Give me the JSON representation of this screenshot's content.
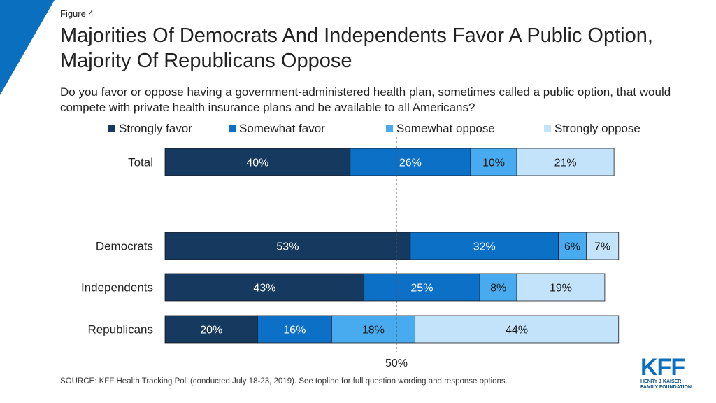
{
  "figure_label": "Figure 4",
  "title": "Majorities Of Democrats And Independents Favor A Public Option, Majority Of Republicans Oppose",
  "subtitle": "Do you favor or oppose having a government-administered health plan, sometimes called a public option, that would compete with private health insurance plans and be available to all Americans?",
  "source": "SOURCE: KFF Health Tracking Poll (conducted July 18-23, 2019). See topline for full question wording and response options.",
  "logo": {
    "main": "KFF",
    "line1": "HENRY J KAISER",
    "line2": "FAMILY FOUNDATION"
  },
  "colors": {
    "accent": "#0b6fbf",
    "corner": "#0b6fbf"
  },
  "chart_data": {
    "type": "bar",
    "orientation": "horizontal",
    "stacked": true,
    "categories": [
      "Total",
      "Democrats",
      "Independents",
      "Republicans"
    ],
    "series": [
      {
        "name": "Strongly favor",
        "color": "#163a5f",
        "values": [
          40,
          53,
          43,
          20
        ],
        "labels": [
          "40%",
          "53%",
          "43%",
          "20%"
        ]
      },
      {
        "name": "Somewhat favor",
        "color": "#0c70c7",
        "values": [
          26,
          32,
          25,
          16
        ],
        "labels": [
          "26%",
          "32%",
          "25%",
          "16%"
        ]
      },
      {
        "name": "Somewhat oppose",
        "color": "#48abf0",
        "values": [
          10,
          6,
          8,
          18
        ],
        "labels": [
          "10%",
          "6%",
          "8%",
          "18%"
        ]
      },
      {
        "name": "Strongly oppose",
        "color": "#c3e3fb",
        "values": [
          21,
          7,
          19,
          44
        ],
        "labels": [
          "21%",
          "7%",
          "19%",
          "44%"
        ]
      }
    ],
    "reference_line": {
      "value": 50,
      "label": "50%"
    },
    "xlim": [
      0,
      100
    ],
    "grid": false,
    "legend_position": "top"
  }
}
